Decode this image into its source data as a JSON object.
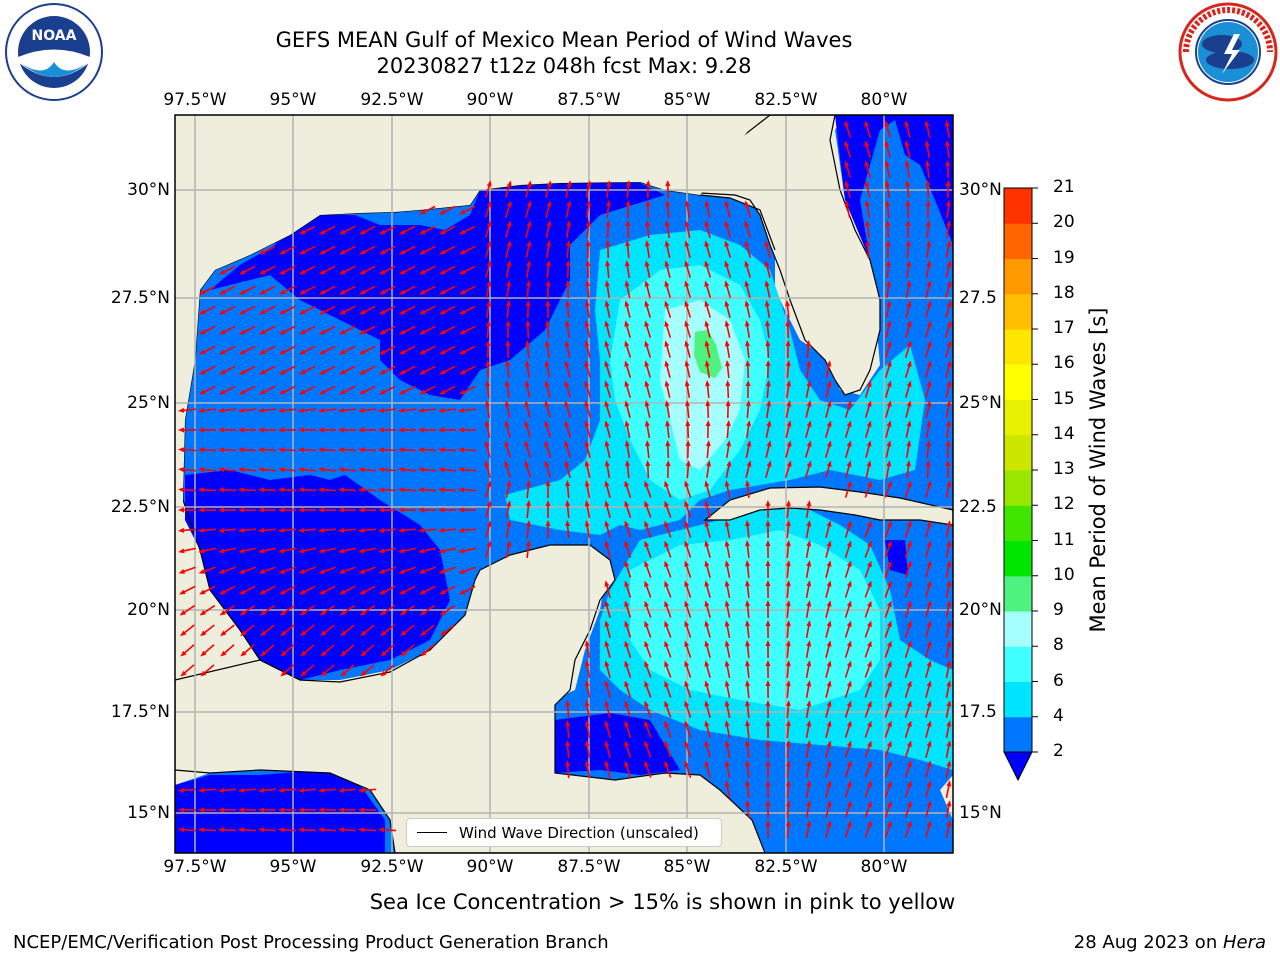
{
  "title": {
    "line1": "GEFS MEAN Gulf of Mexico Mean Period of Wind Waves",
    "line2": "20230827 t12z 048h fcst   Max: 9.28"
  },
  "map": {
    "lon_labels": [
      "97.5°W",
      "95°W",
      "92.5°W",
      "90°W",
      "87.5°W",
      "85°W",
      "82.5°W",
      "80°W"
    ],
    "lat_labels": [
      "30°N",
      "27.5°N",
      "25°N",
      "22.5°N",
      "20°N",
      "17.5°N",
      "15°N"
    ],
    "lat_labels_right": [
      "30°N",
      "27.5",
      "25°N",
      "22.5",
      "20°N",
      "17.5",
      "15°N"
    ],
    "legend_label": "Wind Wave Direction (unscaled)",
    "colors": {
      "land": "#efeddb",
      "grid": "#b3b3b3",
      "arrow": "#ff0000",
      "coast": "#000000"
    }
  },
  "colorbar": {
    "label": "Mean Period of Wind Waves [s]",
    "ticks": [
      "2",
      "4",
      "6",
      "8",
      "9",
      "10",
      "11",
      "12",
      "13",
      "14",
      "15",
      "16",
      "17",
      "18",
      "19",
      "20",
      "21"
    ],
    "colors": [
      "#0077ff",
      "#00e5ff",
      "#3fffff",
      "#a6ffff",
      "#4df27f",
      "#00e600",
      "#40e600",
      "#99e600",
      "#cce600",
      "#e6f000",
      "#ffff00",
      "#ffe600",
      "#ffbf00",
      "#ff9900",
      "#ff6600",
      "#ff3300",
      "#ff0000"
    ],
    "under_color": "#0000ff"
  },
  "caption": "Sea Ice Concentration > 15% is shown in pink to yellow",
  "footer": {
    "left": "NCEP/EMC/Verification Post Processing Product Generation Branch",
    "right_date": "28 Aug 2023 on ",
    "right_host": "Hera"
  }
}
